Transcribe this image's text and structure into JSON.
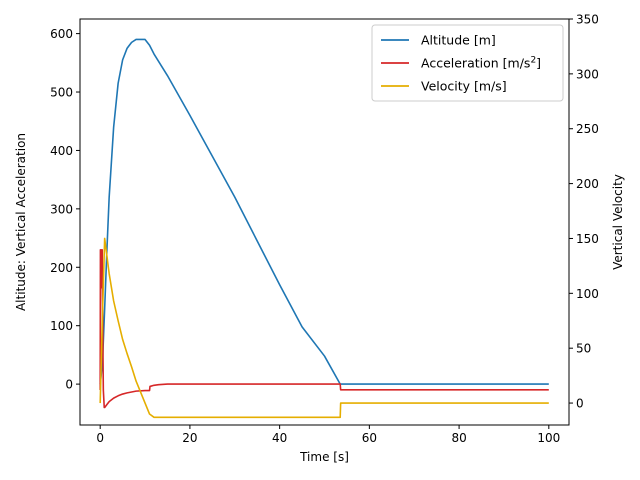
{
  "chart_data": {
    "type": "line",
    "xlabel": "Time [s]",
    "ylabel_left": "Altitude: Vertical Acceleration",
    "ylabel_right": "Vertical Velocity",
    "xlim": [
      -4.5,
      104.5
    ],
    "ylim_left": [
      -70,
      625
    ],
    "ylim_right": [
      -20,
      350
    ],
    "x_ticks": [
      0,
      20,
      40,
      60,
      80,
      100
    ],
    "y_left_ticks": [
      0,
      100,
      200,
      300,
      400,
      500,
      600
    ],
    "y_right_ticks": [
      0,
      50,
      100,
      150,
      200,
      250,
      300,
      350
    ],
    "grid": false,
    "legend_position": "top-right",
    "legend": [
      {
        "label": "Altitude [m]",
        "color": "#1f77b4",
        "axis": "left"
      },
      {
        "label": "Acceleration [m/s²]",
        "color": "#d62728",
        "axis": "left"
      },
      {
        "label": "Velocity [m/s]",
        "color": "#e5ae00",
        "axis": "right"
      }
    ],
    "series": [
      {
        "name": "Altitude [m]",
        "axis": "left",
        "color": "#1f77b4",
        "x": [
          0,
          0.5,
          1,
          1.5,
          2,
          3,
          4,
          5,
          6,
          7,
          8,
          9,
          10,
          11,
          12,
          15,
          20,
          25,
          30,
          35,
          40,
          45,
          50,
          53.5,
          60,
          70,
          80,
          90,
          100
        ],
        "y": [
          0,
          35,
          130,
          230,
          320,
          440,
          515,
          555,
          575,
          585,
          590,
          590,
          590,
          580,
          565,
          528,
          460,
          390,
          320,
          245,
          170,
          98,
          48,
          0,
          0,
          0,
          0,
          0,
          0
        ]
      },
      {
        "name": "Acceleration [m/s²]",
        "axis": "left",
        "color": "#d62728",
        "x": [
          0,
          0.05,
          0.1,
          0.25,
          0.3,
          0.45,
          0.5,
          0.7,
          0.9,
          1.0,
          1.5,
          2,
          3,
          4,
          5,
          6,
          8,
          10,
          11,
          11.1,
          12,
          13,
          15,
          20,
          30,
          40,
          50,
          53.5,
          53.6,
          60,
          70,
          80,
          90,
          100
        ],
        "y": [
          -10,
          230,
          165,
          230,
          165,
          230,
          150,
          -10,
          -40,
          -40,
          -35,
          -30,
          -24,
          -20,
          -17,
          -15,
          -12,
          -11,
          -11,
          -4,
          -2,
          -1,
          0,
          0,
          0,
          0,
          0,
          0,
          -9.8,
          -9.8,
          -9.8,
          -9.8,
          -9.8,
          -9.8
        ]
      },
      {
        "name": "Velocity [m/s]",
        "axis": "right",
        "color": "#e5ae00",
        "x": [
          0,
          0.5,
          1,
          2,
          3,
          4,
          5,
          6,
          7,
          8,
          9,
          10,
          11,
          12,
          20,
          30,
          40,
          50,
          53.5,
          53.6,
          60,
          70,
          80,
          90,
          100
        ],
        "y": [
          0,
          80,
          150,
          118,
          93,
          75,
          58,
          45,
          33,
          20,
          10,
          0,
          -10,
          -13,
          -13,
          -13,
          -13,
          -13,
          -13,
          0,
          0,
          0,
          0,
          0,
          0
        ]
      }
    ]
  }
}
